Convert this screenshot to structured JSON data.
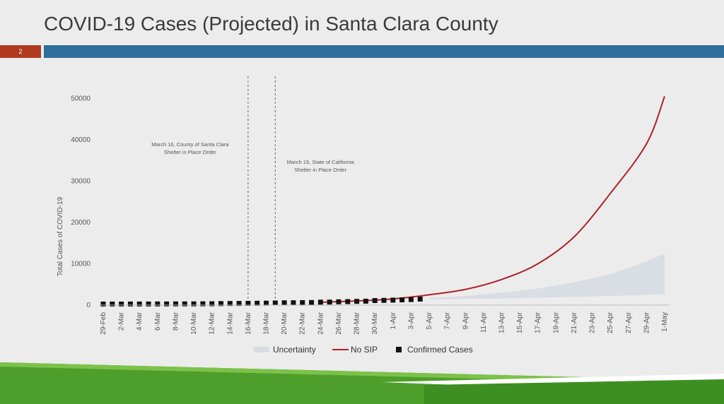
{
  "slide": {
    "title": "COVID-19 Cases (Projected) in Santa Clara County",
    "number": "2"
  },
  "colors": {
    "accent_bar": "#2f6e9a",
    "slide_number_bg": "#b03a1f",
    "no_sip_line": "#b0202a",
    "uncertainty_fill": "#d7dce3",
    "confirmed_marker": "#111111",
    "footer_green": "#4e9e2b"
  },
  "chart_data": {
    "type": "line",
    "ylabel": "Total Cases of COVID-19",
    "ylim": [
      0,
      55000
    ],
    "yticks": [
      0,
      10000,
      20000,
      30000,
      40000,
      50000
    ],
    "x_tick_labels": [
      "29-Feb",
      "2-Mar",
      "4-Mar",
      "6-Mar",
      "8-Mar",
      "10-Mar",
      "12-Mar",
      "14-Mar",
      "16-Mar",
      "18-Mar",
      "20-Mar",
      "22-Mar",
      "24-Mar",
      "26-Mar",
      "28-Mar",
      "30-Mar",
      "1-Apr",
      "3-Apr",
      "5-Apr",
      "7-Apr",
      "9-Apr",
      "11-Apr",
      "13-Apr",
      "15-Apr",
      "17-Apr",
      "19-Apr",
      "21-Apr",
      "23-Apr",
      "25-Apr",
      "27-Apr",
      "29-Apr",
      "1-May"
    ],
    "xlim": [
      "2020-02-29",
      "2020-05-01"
    ],
    "grid": false,
    "legend_position": "bottom",
    "annotations": [
      {
        "date": "2020-03-16",
        "line1": "March 16, County of Santa Clara",
        "line2": "Shelter in Place Order"
      },
      {
        "date": "2020-03-19",
        "line1": "March 19, State of California",
        "line2": "Shelter in Place Order"
      }
    ],
    "series": [
      {
        "name": "Uncertainty",
        "kind": "band",
        "x": [
          "2020-04-05",
          "2020-04-09",
          "2020-04-13",
          "2020-04-17",
          "2020-04-21",
          "2020-04-25",
          "2020-04-29",
          "2020-05-01"
        ],
        "lower": [
          1400,
          1500,
          1600,
          1800,
          2000,
          2200,
          2500,
          2700
        ],
        "upper": [
          1700,
          2200,
          3000,
          4000,
          5500,
          7500,
          10500,
          12500
        ]
      },
      {
        "name": "No SIP",
        "kind": "line",
        "x": [
          "2020-03-24",
          "2020-03-28",
          "2020-04-01",
          "2020-04-05",
          "2020-04-09",
          "2020-04-13",
          "2020-04-17",
          "2020-04-21",
          "2020-04-25",
          "2020-04-29",
          "2020-05-01"
        ],
        "y": [
          700,
          1000,
          1500,
          2500,
          3800,
          6200,
          10000,
          16500,
          27000,
          39000,
          50500
        ]
      },
      {
        "name": "Confirmed Cases",
        "kind": "markers",
        "x": [
          "2020-02-29",
          "2020-03-01",
          "2020-03-02",
          "2020-03-03",
          "2020-03-04",
          "2020-03-05",
          "2020-03-06",
          "2020-03-07",
          "2020-03-08",
          "2020-03-09",
          "2020-03-10",
          "2020-03-11",
          "2020-03-12",
          "2020-03-13",
          "2020-03-14",
          "2020-03-15",
          "2020-03-16",
          "2020-03-17",
          "2020-03-18",
          "2020-03-19",
          "2020-03-20",
          "2020-03-21",
          "2020-03-22",
          "2020-03-23",
          "2020-03-24",
          "2020-03-25",
          "2020-03-26",
          "2020-03-27",
          "2020-03-28",
          "2020-03-29",
          "2020-03-30",
          "2020-03-31",
          "2020-04-01",
          "2020-04-02",
          "2020-04-03",
          "2020-04-04"
        ],
        "y": [
          3,
          9,
          9,
          11,
          14,
          20,
          24,
          32,
          37,
          43,
          48,
          66,
          79,
          114,
          138,
          155,
          175,
          196,
          220,
          263,
          302,
          321,
          350,
          375,
          459,
          483,
          548,
          591,
          647,
          698,
          848,
          890,
          956,
          1019,
          1094,
          1207
        ]
      }
    ]
  }
}
